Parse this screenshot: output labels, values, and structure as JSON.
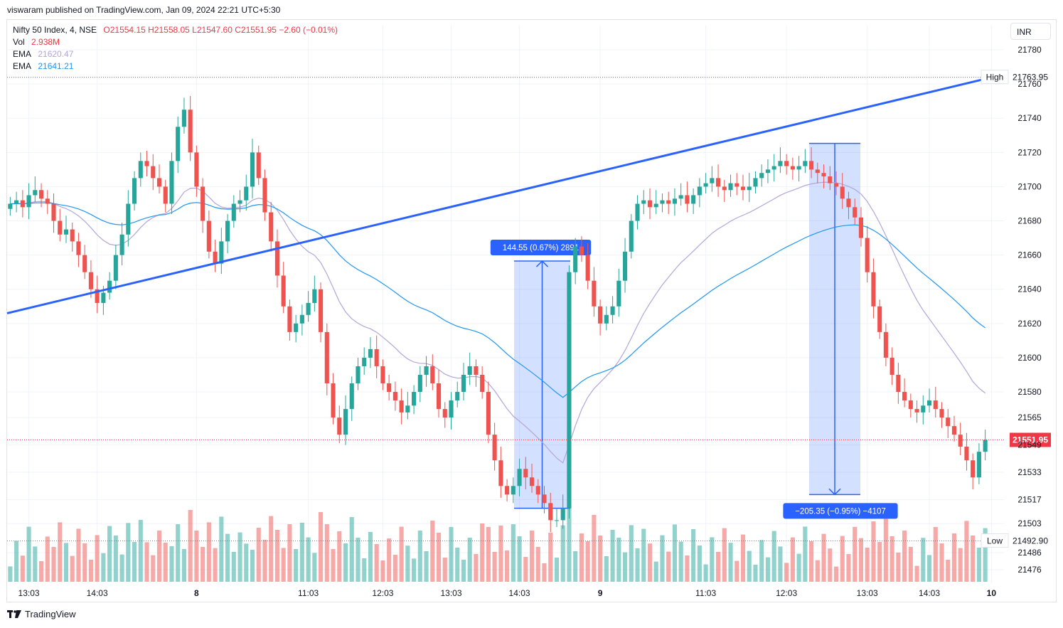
{
  "header": {
    "published": "viswaram published on TradingView.com, Jan 09, 2024 22:21 UTC+5:30"
  },
  "legend": {
    "symbol": "Nifty 50 Index, 4, NSE",
    "ohlc": "O21554.15 H21558.05 L21547.60 C21551.95 −2.60 (−0.01%)",
    "vol_label": "Vol",
    "vol_value": "2.938M",
    "ema1_label": "EMA",
    "ema1_value": "21620.47",
    "ema2_label": "EMA",
    "ema2_value": "21641.21"
  },
  "currency": "INR",
  "footer": {
    "brand": "TradingView"
  },
  "colors": {
    "up": "#26a69a",
    "down": "#ef5350",
    "trend": "#2962ff",
    "ema_fast": "#b2a5da",
    "ema_slow": "#2196f3",
    "range_fill": "#2962ff"
  },
  "chart_data": {
    "type": "candlestick",
    "y_axis": {
      "range": [
        21464,
        21790
      ],
      "ticks": [
        21780,
        21760,
        21740,
        21720,
        21700,
        21680,
        21660,
        21640,
        21620,
        21600,
        21580,
        21565,
        21549,
        21533,
        21517,
        21503,
        21486,
        21476
      ]
    },
    "x_axis": {
      "ticks": [
        "13:03",
        "14:03",
        "8",
        "11:03",
        "12:03",
        "13:03",
        "14:03",
        "9",
        "11:03",
        "12:03",
        "13:03",
        "14:03",
        "10"
      ]
    },
    "price_labels": [
      {
        "label": "High",
        "value": 21763.95
      },
      {
        "label": "Low",
        "value": 21492.9
      },
      {
        "label": "",
        "value": 21551.95
      }
    ],
    "closes": [
      21690,
      21692,
      21688,
      21695,
      21698,
      21693,
      21690,
      21680,
      21672,
      21675,
      21668,
      21660,
      21650,
      21640,
      21632,
      21638,
      21645,
      21660,
      21672,
      21690,
      21705,
      21715,
      21712,
      21705,
      21700,
      21690,
      21715,
      21735,
      21745,
      21720,
      21700,
      21680,
      21662,
      21655,
      21668,
      21680,
      21690,
      21692,
      21700,
      21720,
      21705,
      21685,
      21668,
      21648,
      21630,
      21615,
      21620,
      21625,
      21632,
      21640,
      21615,
      21585,
      21565,
      21555,
      21570,
      21585,
      21595,
      21600,
      21605,
      21595,
      21585,
      21580,
      21575,
      21568,
      21572,
      21580,
      21590,
      21595,
      21585,
      21570,
      21565,
      21575,
      21580,
      21590,
      21595,
      21590,
      21580,
      21555,
      21540,
      21525,
      21520,
      21525,
      21535,
      21530,
      21525,
      21520,
      21515,
      21505,
      21505,
      21512,
      21650,
      21665,
      21660,
      21645,
      21630,
      21620,
      21625,
      21630,
      21645,
      21662,
      21680,
      21690,
      21692,
      21688,
      21690,
      21692,
      21690,
      21693,
      21695,
      21690,
      21695,
      21700,
      21702,
      21705,
      21700,
      21698,
      21702,
      21700,
      21698,
      21700,
      21705,
      21708,
      21710,
      21712,
      21715,
      21712,
      21710,
      21712,
      21715,
      21710,
      21708,
      21706,
      21702,
      21700,
      21693,
      21688,
      21682,
      21670,
      21650,
      21630,
      21615,
      21600,
      21590,
      21580,
      21575,
      21570,
      21568,
      21572,
      21575,
      21570,
      21565,
      21560,
      21555,
      21548,
      21540,
      21530,
      21545,
      21552
    ],
    "series": [
      {
        "name": "EMA",
        "value": 21620.47
      },
      {
        "name": "EMA",
        "value": 21641.21
      }
    ],
    "annotations": [
      {
        "type": "trend_line",
        "from": [
          "13:03",
          21626
        ],
        "to": [
          "10",
          21763.95
        ]
      },
      {
        "type": "price_range",
        "label": "144.55 (0.67%) 2891",
        "from": 21512,
        "to": 21656.5
      },
      {
        "type": "price_range",
        "label": "−205.35 (−0.95%) −4107",
        "from": 21725.3,
        "to": 21520
      }
    ]
  }
}
